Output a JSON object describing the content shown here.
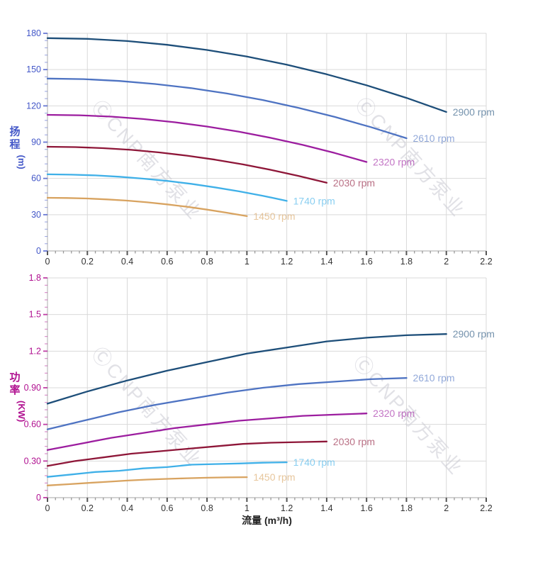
{
  "watermark": {
    "text": "ⒸCNP南方泵业"
  },
  "colors": {
    "grid": "#d9d9d9",
    "axis_line": "#c4c4c4",
    "x_tick": "#555555",
    "x_tick_label": "#333333",
    "head_axis": "#4357c8",
    "power_axis": "#b01090",
    "watermark": "#c9c9d1"
  },
  "chart_data": [
    {
      "type": "line",
      "title": "",
      "ylabel_chars": [
        "扬",
        "程"
      ],
      "ylabel_unit": "(m)",
      "xlabel": "",
      "xlim": [
        0,
        2.2
      ],
      "ylim": [
        0,
        180
      ],
      "grid": true,
      "legend_position": "end-of-curve",
      "x_tick_values": [
        0,
        0.2,
        0.4,
        0.6,
        0.8,
        1,
        1.2,
        1.4,
        1.6,
        1.8,
        2,
        2.2
      ],
      "x_tick_labels": [
        "0",
        "0.2",
        "0.4",
        "0.6",
        "0.8",
        "1",
        "1.2",
        "1.4",
        "1.6",
        "1.8",
        "2",
        "2.2"
      ],
      "y_tick_values": [
        0,
        30,
        60,
        90,
        120,
        150,
        180
      ],
      "y_tick_labels": [
        "0",
        "30",
        "60",
        "90",
        "120",
        "150",
        "180"
      ],
      "x_minor_step": 0.04,
      "y_minor_step": 6,
      "axis_color": "#4357c8",
      "series": [
        {
          "name": "2900 rpm",
          "color": "#1d4e79",
          "points": [
            [
              0,
              176
            ],
            [
              0.2,
              175.4
            ],
            [
              0.4,
              173.6
            ],
            [
              0.6,
              170.5
            ],
            [
              0.8,
              166.2
            ],
            [
              1,
              160.8
            ],
            [
              1.2,
              154
            ],
            [
              1.4,
              146.1
            ],
            [
              1.6,
              137
            ],
            [
              1.8,
              126.6
            ],
            [
              2,
              115
            ]
          ]
        },
        {
          "name": "2610 rpm",
          "color": "#4e73c2",
          "points": [
            [
              0,
              142.6
            ],
            [
              0.18,
              142.1
            ],
            [
              0.36,
              140.6
            ],
            [
              0.54,
              138.1
            ],
            [
              0.72,
              134.7
            ],
            [
              0.9,
              130.2
            ],
            [
              1.08,
              124.8
            ],
            [
              1.26,
              118.3
            ],
            [
              1.44,
              110.9
            ],
            [
              1.62,
              102.5
            ],
            [
              1.8,
              93.2
            ]
          ]
        },
        {
          "name": "2320 rpm",
          "color": "#9c1d9f",
          "points": [
            [
              0,
              112.6
            ],
            [
              0.16,
              112.2
            ],
            [
              0.32,
              111.1
            ],
            [
              0.48,
              109.1
            ],
            [
              0.64,
              106.4
            ],
            [
              0.8,
              102.9
            ],
            [
              0.96,
              98.6
            ],
            [
              1.12,
              93.5
            ],
            [
              1.28,
              87.7
            ],
            [
              1.44,
              81
            ],
            [
              1.6,
              73.6
            ]
          ]
        },
        {
          "name": "2030 rpm",
          "color": "#8e1638",
          "points": [
            [
              0,
              86.2
            ],
            [
              0.14,
              85.9
            ],
            [
              0.28,
              85
            ],
            [
              0.42,
              83.6
            ],
            [
              0.56,
              81.5
            ],
            [
              0.7,
              78.8
            ],
            [
              0.84,
              75.5
            ],
            [
              0.98,
              71.6
            ],
            [
              1.12,
              67.1
            ],
            [
              1.26,
              62
            ],
            [
              1.4,
              56.4
            ]
          ]
        },
        {
          "name": "1740 rpm",
          "color": "#3fb0e8",
          "points": [
            [
              0,
              63.4
            ],
            [
              0.12,
              63.1
            ],
            [
              0.24,
              62.5
            ],
            [
              0.36,
              61.4
            ],
            [
              0.48,
              59.8
            ],
            [
              0.6,
              57.9
            ],
            [
              0.72,
              55.5
            ],
            [
              0.84,
              52.6
            ],
            [
              0.96,
              49.3
            ],
            [
              1.08,
              45.6
            ],
            [
              1.2,
              41.4
            ]
          ]
        },
        {
          "name": "1450 rpm",
          "color": "#d8a360",
          "points": [
            [
              0,
              44
            ],
            [
              0.1,
              43.8
            ],
            [
              0.2,
              43.4
            ],
            [
              0.3,
              42.6
            ],
            [
              0.4,
              41.6
            ],
            [
              0.5,
              40.2
            ],
            [
              0.6,
              38.5
            ],
            [
              0.7,
              36.5
            ],
            [
              0.8,
              34.2
            ],
            [
              0.9,
              31.6
            ],
            [
              1,
              28.8
            ]
          ]
        }
      ]
    },
    {
      "type": "line",
      "title": "",
      "ylabel_chars": [
        "功",
        "率"
      ],
      "ylabel_unit": "(KW)",
      "xlabel": "流量 (m³/h)",
      "xlim": [
        0,
        2.2
      ],
      "ylim": [
        0,
        1.8
      ],
      "grid": true,
      "legend_position": "end-of-curve",
      "x_tick_values": [
        0,
        0.2,
        0.4,
        0.6,
        0.8,
        1,
        1.2,
        1.4,
        1.6,
        1.8,
        2,
        2.2
      ],
      "x_tick_labels": [
        "0",
        "0.2",
        "0.4",
        "0.6",
        "0.8",
        "1",
        "1.2",
        "1.4",
        "1.6",
        "1.8",
        "2",
        "2.2"
      ],
      "y_tick_values": [
        0,
        0.3,
        0.6,
        0.9,
        1.2,
        1.5,
        1.8
      ],
      "y_tick_labels": [
        "0",
        "0.30",
        "0.60",
        "0.90",
        "1.2",
        "1.5",
        "1.8"
      ],
      "x_minor_step": 0.04,
      "y_minor_step": 0.06,
      "axis_color": "#b01090",
      "series": [
        {
          "name": "2900 rpm",
          "color": "#1d4e79",
          "points": [
            [
              0,
              0.77
            ],
            [
              0.2,
              0.87
            ],
            [
              0.4,
              0.96
            ],
            [
              0.6,
              1.04
            ],
            [
              0.8,
              1.11
            ],
            [
              1,
              1.18
            ],
            [
              1.2,
              1.23
            ],
            [
              1.4,
              1.28
            ],
            [
              1.6,
              1.31
            ],
            [
              1.8,
              1.33
            ],
            [
              2,
              1.34
            ]
          ]
        },
        {
          "name": "2610 rpm",
          "color": "#4e73c2",
          "points": [
            [
              0,
              0.56
            ],
            [
              0.18,
              0.63
            ],
            [
              0.36,
              0.7
            ],
            [
              0.54,
              0.76
            ],
            [
              0.72,
              0.81
            ],
            [
              0.9,
              0.86
            ],
            [
              1.08,
              0.9
            ],
            [
              1.26,
              0.93
            ],
            [
              1.44,
              0.95
            ],
            [
              1.62,
              0.97
            ],
            [
              1.8,
              0.98
            ]
          ]
        },
        {
          "name": "2320 rpm",
          "color": "#9c1d9f",
          "points": [
            [
              0,
              0.39
            ],
            [
              0.16,
              0.44
            ],
            [
              0.32,
              0.49
            ],
            [
              0.48,
              0.53
            ],
            [
              0.64,
              0.57
            ],
            [
              0.8,
              0.6
            ],
            [
              0.96,
              0.63
            ],
            [
              1.12,
              0.65
            ],
            [
              1.28,
              0.67
            ],
            [
              1.44,
              0.68
            ],
            [
              1.6,
              0.69
            ]
          ]
        },
        {
          "name": "2030 rpm",
          "color": "#8e1638",
          "points": [
            [
              0,
              0.26
            ],
            [
              0.14,
              0.3
            ],
            [
              0.28,
              0.33
            ],
            [
              0.42,
              0.36
            ],
            [
              0.56,
              0.38
            ],
            [
              0.7,
              0.4
            ],
            [
              0.84,
              0.42
            ],
            [
              0.98,
              0.44
            ],
            [
              1.12,
              0.45
            ],
            [
              1.26,
              0.455
            ],
            [
              1.4,
              0.46
            ]
          ]
        },
        {
          "name": "1740 rpm",
          "color": "#3fb0e8",
          "points": [
            [
              0,
              0.17
            ],
            [
              0.12,
              0.19
            ],
            [
              0.24,
              0.21
            ],
            [
              0.36,
              0.22
            ],
            [
              0.48,
              0.24
            ],
            [
              0.6,
              0.25
            ],
            [
              0.72,
              0.27
            ],
            [
              0.84,
              0.275
            ],
            [
              0.96,
              0.28
            ],
            [
              1.08,
              0.286
            ],
            [
              1.2,
              0.29
            ]
          ]
        },
        {
          "name": "1450 rpm",
          "color": "#d8a360",
          "points": [
            [
              0,
              0.1
            ],
            [
              0.1,
              0.11
            ],
            [
              0.2,
              0.12
            ],
            [
              0.3,
              0.13
            ],
            [
              0.4,
              0.14
            ],
            [
              0.5,
              0.148
            ],
            [
              0.6,
              0.154
            ],
            [
              0.7,
              0.159
            ],
            [
              0.8,
              0.163
            ],
            [
              0.9,
              0.166
            ],
            [
              1,
              0.168
            ]
          ]
        }
      ]
    }
  ]
}
